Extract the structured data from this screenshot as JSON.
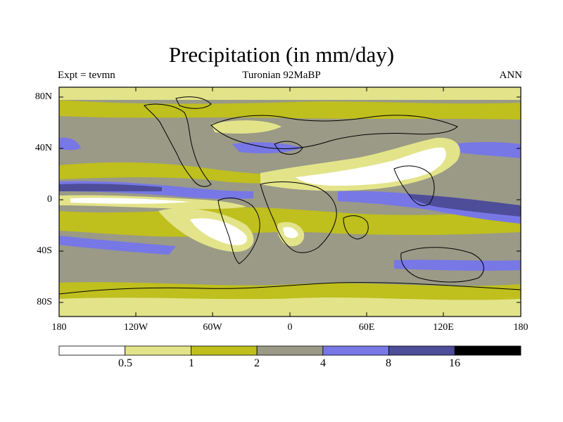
{
  "title": "Precipitation (in mm/day)",
  "left_title": "Expt = tevmn",
  "center_title": "Turonian  92MaBP",
  "right_title": "ANN",
  "lat_labels": [
    "80N",
    "40N",
    "0",
    "40S",
    "80S"
  ],
  "lon_labels": [
    "180",
    "120W",
    "60W",
    "0",
    "60E",
    "120E",
    "180"
  ],
  "colorbar": {
    "levels": [
      "0.5",
      "1",
      "2",
      "4",
      "8",
      "16"
    ],
    "colors": [
      "#ffffff",
      "#e3e38a",
      "#bfbf1e",
      "#9a9a87",
      "#7777e6",
      "#4d4d99",
      "#000000"
    ]
  },
  "colors": {
    "ocean_base": "#9a9a87",
    "coast": "#000000"
  }
}
